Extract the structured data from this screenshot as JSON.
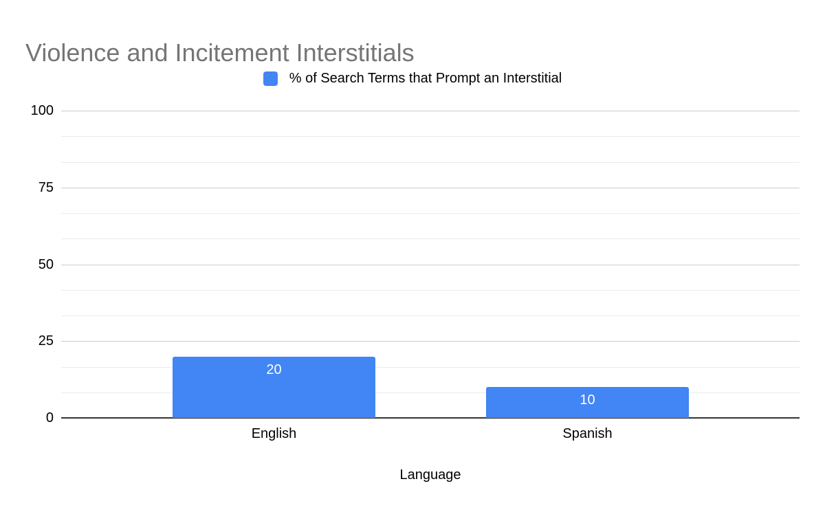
{
  "chart": {
    "title": "Violence and Incitement Interstitials",
    "title_color": "#757575",
    "legend": {
      "label": "% of Search Terms that Prompt an Interstitial",
      "swatch_color": "#4285f4",
      "position": "top-center"
    },
    "x_axis_title": "Language"
  },
  "chart_data": {
    "type": "bar",
    "title": "Violence and Incitement Interstitials",
    "categories": [
      "English",
      "Spanish"
    ],
    "series": [
      {
        "name": "% of Search Terms that Prompt an Interstitial",
        "values": [
          20,
          10
        ],
        "color": "#4285f4"
      }
    ],
    "data_labels": [
      "20",
      "10"
    ],
    "data_label_position": "inside-top",
    "data_label_color": "#ffffff",
    "xlabel": "Language",
    "ylabel": "",
    "ylim": [
      0,
      100
    ],
    "y_major_ticks": [
      0,
      25,
      50,
      75,
      100
    ],
    "y_tick_labels": [
      "0",
      "25",
      "50",
      "75",
      "100"
    ],
    "minor_gridlines_between_majors": 2,
    "grid": true,
    "legend_position": "top",
    "colors": {
      "major_gridline": "#cccccc",
      "minor_gridline": "#ebebeb",
      "axis_line": "#333333",
      "text": "#000000"
    }
  }
}
